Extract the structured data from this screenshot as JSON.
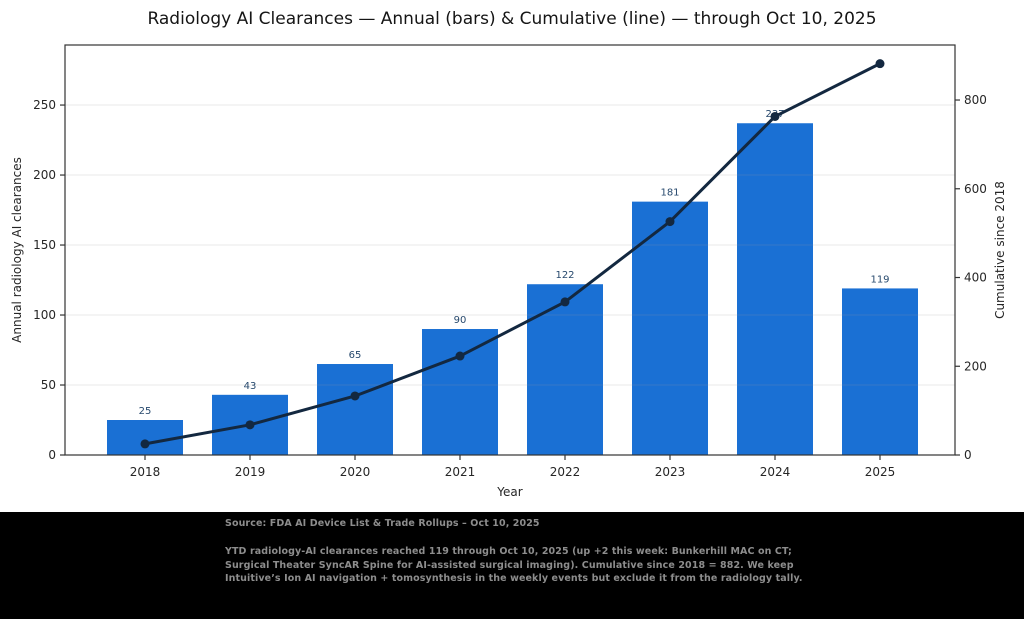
{
  "chart_data": {
    "type": "bar",
    "title": "Radiology AI Clearances — Annual (bars) & Cumulative (line) — through Oct 10, 2025",
    "categories": [
      "2018",
      "2019",
      "2020",
      "2021",
      "2022",
      "2023",
      "2024",
      "2025"
    ],
    "series": [
      {
        "name": "Annual (bars)",
        "type": "bar",
        "axis": "left",
        "values": [
          25,
          43,
          65,
          90,
          122,
          181,
          237,
          119
        ]
      },
      {
        "name": "Cumulative (line)",
        "type": "line",
        "axis": "right",
        "values": [
          25,
          68,
          133,
          223,
          345,
          526,
          763,
          882
        ]
      }
    ],
    "bar_labels": [
      "25",
      "43",
      "65",
      "90",
      "122",
      "181",
      "237",
      "119"
    ],
    "xlabel": "Year",
    "ylabel_left": "Annual radiology AI clearances",
    "ylabel_right": "Cumulative since 2018",
    "yticks_left": [
      0,
      50,
      100,
      150,
      200,
      250
    ],
    "yticks_right": [
      0,
      200,
      400,
      600,
      800
    ],
    "ylim_left": [
      0,
      292.9
    ],
    "ylim_right": [
      0,
      924
    ],
    "grid": true,
    "legend": "none",
    "colors": {
      "bar": "#1a70d4",
      "line": "#132840",
      "marker": "#132840",
      "bar_label": "#27496d",
      "tick_label": "#262626",
      "frame": "#333333",
      "grid": "#999999"
    }
  },
  "footer": {
    "source": "Source: FDA AI Device List & Trade Rollups – Oct 10, 2025",
    "note": "YTD radiology-AI clearances reached 119 through Oct 10, 2025 (up +2 this week: Bunkerhill MAC on CT; Surgical Theater SyncAR Spine for AI-assisted surgical imaging). Cumulative since 2018 = 882. We keep Intuitive’s Ion AI navigation + tomosynthesis in the weekly events but exclude it from the radiology tally."
  }
}
